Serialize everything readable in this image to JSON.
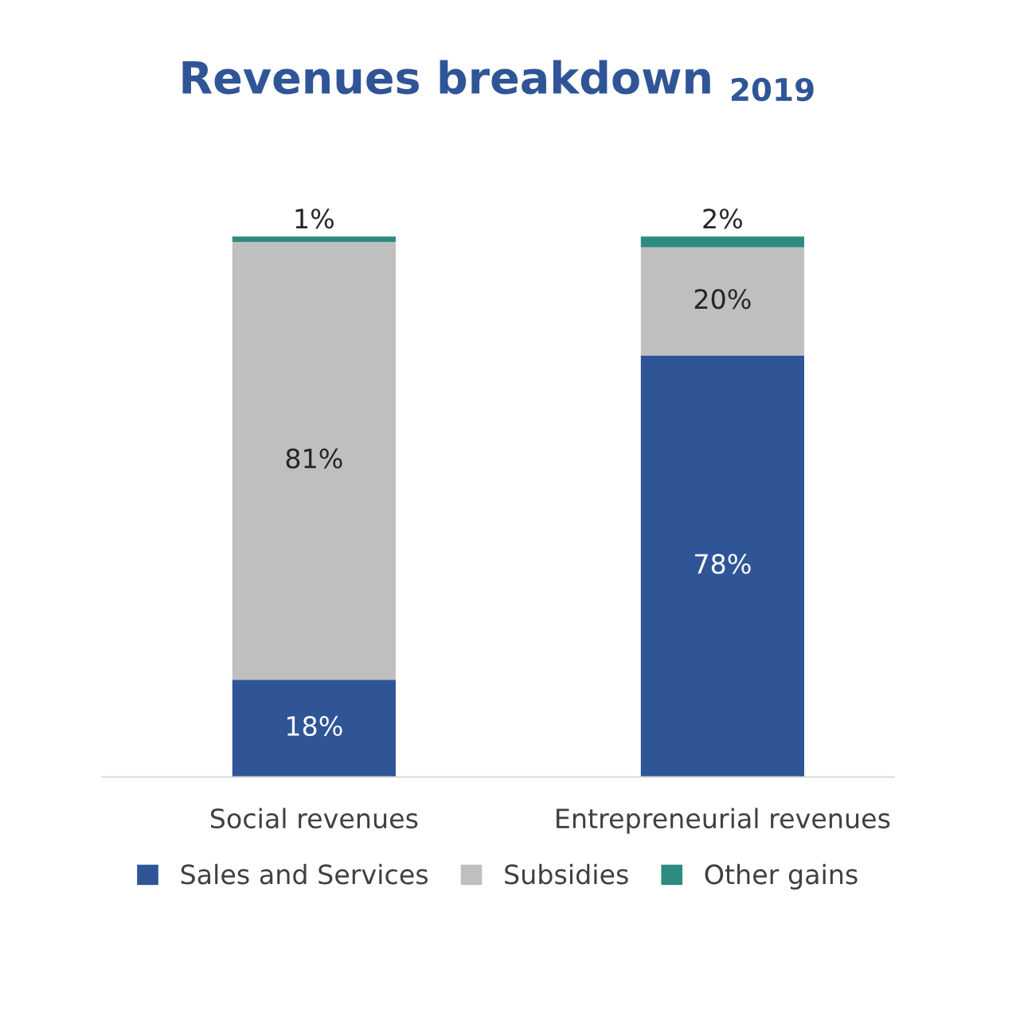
{
  "chart_data": {
    "type": "bar",
    "title": "Revenues breakdown $_{2019}$",
    "stacked": true,
    "legend": "bottom",
    "categories": [
      "Social revenues",
      "Entrepreneurial revenues"
    ],
    "series": [
      {
        "name": "Sales and Services",
        "color": "#2f5597",
        "values": [
          18,
          78
        ],
        "value_labels": [
          "18%",
          "78%"
        ]
      },
      {
        "name": "Subsidies",
        "color": "#bfbfbf",
        "values": [
          81,
          20
        ],
        "value_labels": [
          "81%",
          "20%"
        ]
      },
      {
        "name": "Other gains",
        "color": "#2e8b80",
        "values": [
          1,
          2
        ],
        "value_labels": [
          "1%",
          "2%"
        ]
      }
    ]
  }
}
